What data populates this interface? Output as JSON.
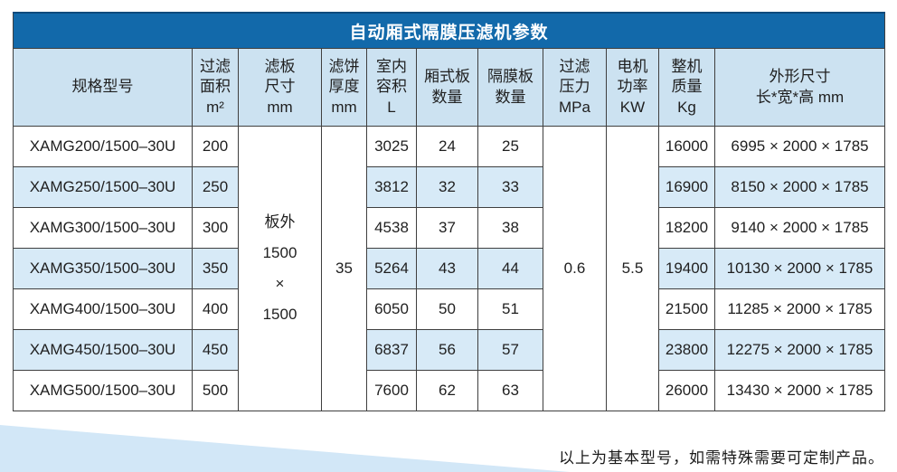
{
  "title": "自动厢式隔膜压滤机参数",
  "colors": {
    "title_bar": "#1269aa",
    "title_bar_top_edge": "#0c4a7c",
    "header_bg": "#cce2f1",
    "stripe_bg": "#d7eaf7",
    "border": "#3f3f3f",
    "wedge": "#d2e7f7"
  },
  "table": {
    "headers": [
      {
        "key": "model",
        "label": "规格型号"
      },
      {
        "key": "area",
        "label": "过滤\n面积\nm²"
      },
      {
        "key": "plate_size",
        "label": "滤板\n尺寸\nmm"
      },
      {
        "key": "cake_thickness",
        "label": "滤饼\n厚度\nmm"
      },
      {
        "key": "volume",
        "label": "室内\n容积\nL"
      },
      {
        "key": "chamber_plates",
        "label": "厢式板\n数量"
      },
      {
        "key": "diaphragm_plates",
        "label": "隔膜板\n数量"
      },
      {
        "key": "pressure",
        "label": "过滤\n压力\nMPa"
      },
      {
        "key": "motor_power",
        "label": "电机\n功率\nKW"
      },
      {
        "key": "weight",
        "label": "整机\n质量\nKg"
      },
      {
        "key": "dimensions",
        "label": "外形尺寸\n长*宽*高 mm"
      }
    ],
    "merged_values": {
      "plate_size": "板外\n1500\n×\n1500",
      "cake_thickness": "35",
      "pressure": "0.6",
      "motor_power": "5.5"
    },
    "rows": [
      {
        "model": "XAMG200/1500–30U",
        "area": "200",
        "volume": "3025",
        "chamber_plates": "24",
        "diaphragm_plates": "25",
        "weight": "16000",
        "dimensions": "6995 × 2000 × 1785"
      },
      {
        "model": "XAMG250/1500–30U",
        "area": "250",
        "volume": "3812",
        "chamber_plates": "32",
        "diaphragm_plates": "33",
        "weight": "16900",
        "dimensions": "8150 × 2000 × 1785"
      },
      {
        "model": "XAMG300/1500–30U",
        "area": "300",
        "volume": "4538",
        "chamber_plates": "37",
        "diaphragm_plates": "38",
        "weight": "18200",
        "dimensions": "9140 × 2000 × 1785"
      },
      {
        "model": "XAMG350/1500–30U",
        "area": "350",
        "volume": "5264",
        "chamber_plates": "43",
        "diaphragm_plates": "44",
        "weight": "19400",
        "dimensions": "10130 × 2000 × 1785"
      },
      {
        "model": "XAMG400/1500–30U",
        "area": "400",
        "volume": "6050",
        "chamber_plates": "50",
        "diaphragm_plates": "51",
        "weight": "21500",
        "dimensions": "11285 × 2000 × 1785"
      },
      {
        "model": "XAMG450/1500–30U",
        "area": "450",
        "volume": "6837",
        "chamber_plates": "56",
        "diaphragm_plates": "57",
        "weight": "23800",
        "dimensions": "12275 × 2000 × 1785"
      },
      {
        "model": "XAMG500/1500–30U",
        "area": "500",
        "volume": "7600",
        "chamber_plates": "62",
        "diaphragm_plates": "63",
        "weight": "26000",
        "dimensions": "13430 × 2000 × 1785"
      }
    ]
  },
  "footer_note": "以上为基本型号，如需特殊需要可定制产品。"
}
